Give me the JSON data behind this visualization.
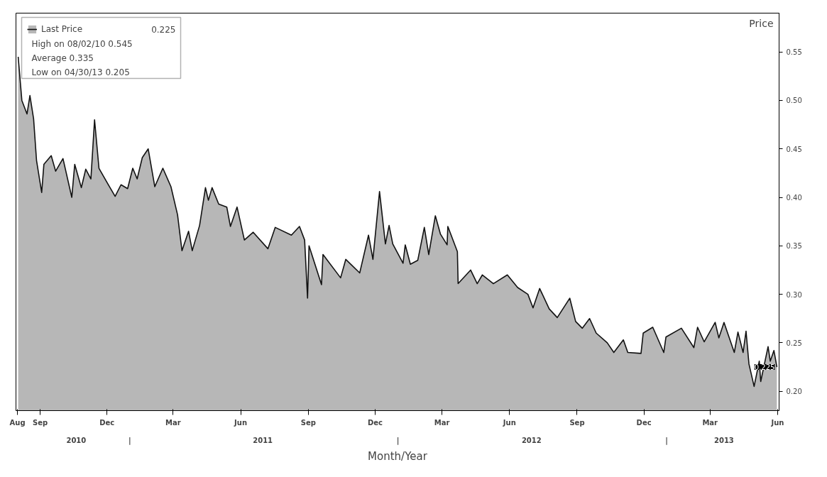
{
  "chart_data": {
    "type": "area",
    "xlabel": "Month/Year",
    "ylabel": "Price",
    "x": [
      "2010-08-02",
      "2010-08-07",
      "2010-08-14",
      "2010-08-18",
      "2010-08-23",
      "2010-08-27",
      "2010-09-03",
      "2010-09-06",
      "2010-09-16",
      "2010-09-22",
      "2010-10-02",
      "2010-10-14",
      "2010-10-18",
      "2010-10-27",
      "2010-11-02",
      "2010-11-09",
      "2010-11-14",
      "2010-11-20",
      "2010-12-02",
      "2010-12-12",
      "2010-12-20",
      "2010-12-29",
      "2011-01-05",
      "2011-01-11",
      "2011-01-18",
      "2011-01-26",
      "2011-02-04",
      "2011-02-15",
      "2011-02-26",
      "2011-03-07",
      "2011-03-13",
      "2011-03-22",
      "2011-03-27",
      "2011-04-06",
      "2011-04-14",
      "2011-04-18",
      "2011-04-23",
      "2011-05-02",
      "2011-05-13",
      "2011-05-18",
      "2011-05-27",
      "2011-06-06",
      "2011-06-18",
      "2011-07-08",
      "2011-07-18",
      "2011-08-09",
      "2011-08-20",
      "2011-08-27",
      "2011-08-31",
      "2011-09-02",
      "2011-09-19",
      "2011-09-21",
      "2011-10-15",
      "2011-10-22",
      "2011-11-10",
      "2011-11-22",
      "2011-11-28",
      "2011-12-07",
      "2011-12-15",
      "2011-12-20",
      "2011-12-25",
      "2012-01-08",
      "2012-01-11",
      "2012-01-18",
      "2012-01-28",
      "2012-02-06",
      "2012-02-12",
      "2012-02-21",
      "2012-02-28",
      "2012-03-08",
      "2012-03-09",
      "2012-03-22",
      "2012-03-23",
      "2012-04-09",
      "2012-04-18",
      "2012-04-25",
      "2012-05-10",
      "2012-05-29",
      "2012-06-12",
      "2012-06-26",
      "2012-07-03",
      "2012-07-12",
      "2012-07-25",
      "2012-08-05",
      "2012-08-22",
      "2012-08-30",
      "2012-09-08",
      "2012-09-18",
      "2012-09-27",
      "2012-10-12",
      "2012-10-21",
      "2012-11-03",
      "2012-11-09",
      "2012-11-27",
      "2012-11-30",
      "2012-12-13",
      "2012-12-28",
      "2012-12-31",
      "2013-01-21",
      "2013-02-07",
      "2013-02-12",
      "2013-02-21",
      "2013-03-08",
      "2013-03-13",
      "2013-03-20",
      "2013-04-03",
      "2013-04-08",
      "2013-04-15",
      "2013-04-19",
      "2013-04-23",
      "2013-04-30",
      "2013-05-07",
      "2013-05-09",
      "2013-05-19",
      "2013-05-22",
      "2013-05-27",
      "2013-05-31"
    ],
    "series": [
      {
        "name": "Last Price",
        "color": "#111111",
        "values": [
          0.545,
          0.5,
          0.486,
          0.505,
          0.481,
          0.438,
          0.405,
          0.434,
          0.443,
          0.427,
          0.44,
          0.4,
          0.434,
          0.41,
          0.429,
          0.419,
          0.48,
          0.43,
          0.414,
          0.401,
          0.413,
          0.409,
          0.43,
          0.419,
          0.441,
          0.45,
          0.411,
          0.43,
          0.411,
          0.382,
          0.345,
          0.365,
          0.345,
          0.371,
          0.41,
          0.397,
          0.41,
          0.393,
          0.39,
          0.37,
          0.39,
          0.356,
          0.364,
          0.347,
          0.369,
          0.361,
          0.37,
          0.356,
          0.296,
          0.35,
          0.31,
          0.341,
          0.317,
          0.336,
          0.322,
          0.361,
          0.336,
          0.406,
          0.352,
          0.371,
          0.352,
          0.332,
          0.351,
          0.331,
          0.335,
          0.369,
          0.341,
          0.381,
          0.362,
          0.351,
          0.37,
          0.344,
          0.311,
          0.325,
          0.311,
          0.32,
          0.311,
          0.32,
          0.307,
          0.3,
          0.286,
          0.306,
          0.285,
          0.276,
          0.296,
          0.272,
          0.265,
          0.275,
          0.26,
          0.25,
          0.24,
          0.253,
          0.24,
          0.239,
          0.26,
          0.266,
          0.24,
          0.256,
          0.265,
          0.245,
          0.266,
          0.251,
          0.271,
          0.255,
          0.271,
          0.24,
          0.261,
          0.24,
          0.262,
          0.228,
          0.205,
          0.231,
          0.21,
          0.246,
          0.231,
          0.242,
          0.225
        ]
      }
    ],
    "xlim": [
      "2010-07-30",
      "2013-06-03"
    ],
    "xticks": [
      {
        "value": "2010-08-01",
        "label": "Aug"
      },
      {
        "value": "2010-09-01",
        "label": "Sep"
      },
      {
        "value": "2010-12-01",
        "label": "Dec"
      },
      {
        "value": "2011-03-01",
        "label": "Mar"
      },
      {
        "value": "2011-06-01",
        "label": "Jun"
      },
      {
        "value": "2011-09-01",
        "label": "Sep"
      },
      {
        "value": "2011-12-01",
        "label": "Dec"
      },
      {
        "value": "2012-03-01",
        "label": "Mar"
      },
      {
        "value": "2012-06-01",
        "label": "Jun"
      },
      {
        "value": "2012-09-01",
        "label": "Sep"
      },
      {
        "value": "2012-12-01",
        "label": "Dec"
      },
      {
        "value": "2013-03-01",
        "label": "Mar"
      },
      {
        "value": "2013-06-01",
        "label": "Jun"
      }
    ],
    "x2lim": [
      "2010-07-30",
      "2013-06-03"
    ],
    "x2ticks": [
      {
        "value": "2010-10-20",
        "label": "2010"
      },
      {
        "value": "2011-01-01",
        "label": "|"
      },
      {
        "value": "2011-07-01",
        "label": "2011"
      },
      {
        "value": "2012-01-01",
        "label": "|"
      },
      {
        "value": "2012-07-01",
        "label": "2012"
      },
      {
        "value": "2013-01-01",
        "label": "|"
      },
      {
        "value": "2013-03-20",
        "label": "2013"
      }
    ],
    "ylim": [
      0.18,
      0.59
    ],
    "yticks": [
      {
        "value": 0.2,
        "label": "0.20"
      },
      {
        "value": 0.25,
        "label": "0.25"
      },
      {
        "value": 0.3,
        "label": "0.30"
      },
      {
        "value": 0.35,
        "label": "0.35"
      },
      {
        "value": 0.4,
        "label": "0.40"
      },
      {
        "value": 0.45,
        "label": "0.45"
      },
      {
        "value": 0.5,
        "label": "0.50"
      },
      {
        "value": 0.55,
        "label": "0.55"
      }
    ],
    "legend": "top left",
    "annotations": [
      "0.225",
      "High on 08/02/10 0.545",
      "Average 0.335",
      "Low on 04/30/13 0.205",
      {
        "text": "0.225",
        "x": "2013-05-31",
        "y": 0.225
      }
    ],
    "grid": false
  }
}
